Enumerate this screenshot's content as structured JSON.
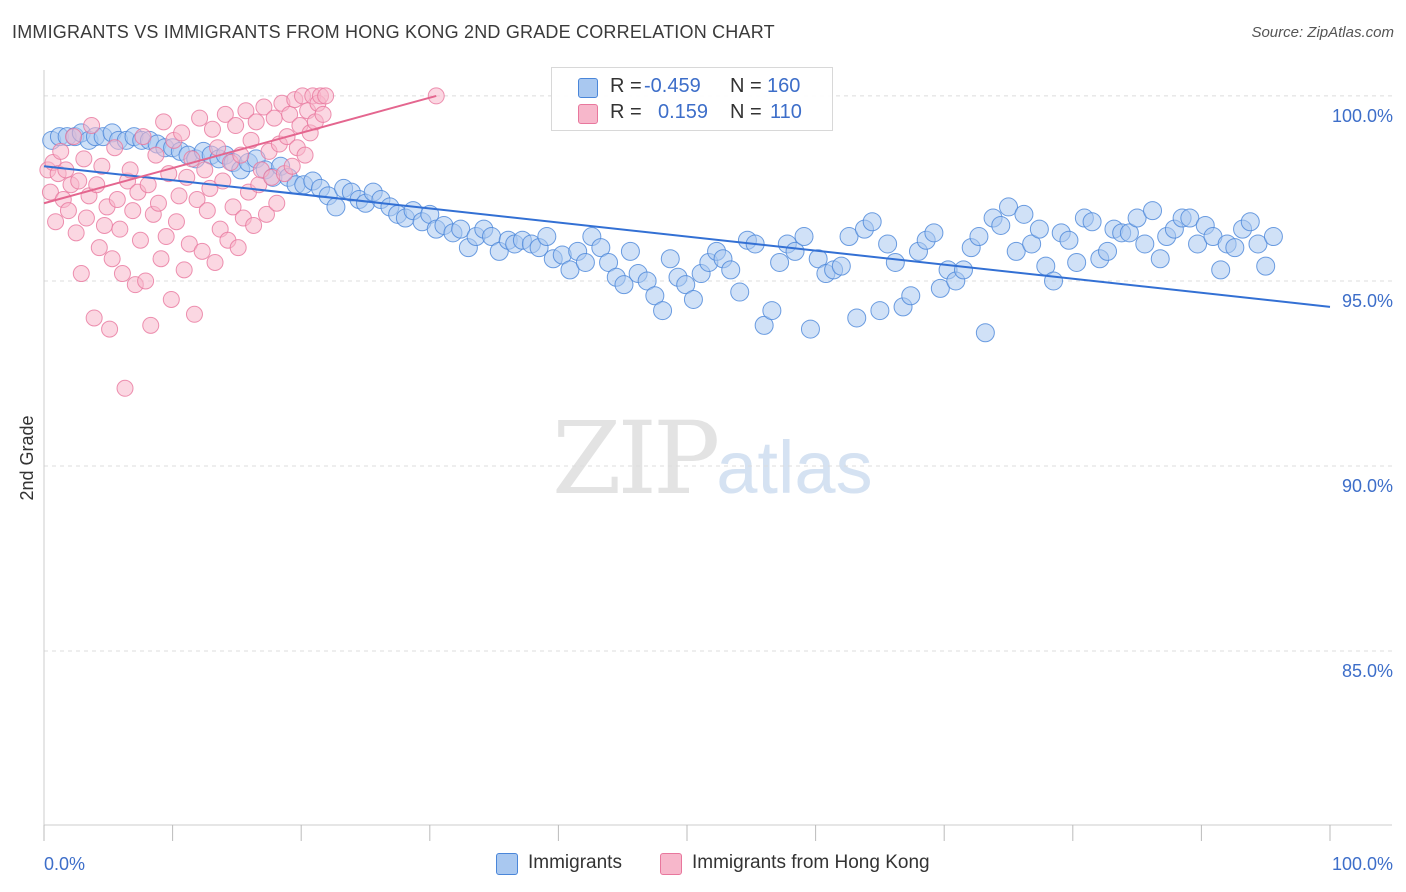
{
  "title": "IMMIGRANTS VS IMMIGRANTS FROM HONG KONG 2ND GRADE CORRELATION CHART",
  "source": "Source: ZipAtlas.com",
  "watermark": {
    "zip": "ZIP",
    "atlas": "atlas"
  },
  "stats": [
    {
      "r_label": "R =",
      "r_value": "-0.459",
      "n_label": "N =",
      "n_value": "160",
      "color": "#a9c8f0"
    },
    {
      "r_label": "R =",
      "r_value": "0.159",
      "n_label": "N =",
      "n_value": "110",
      "color": "#f7b7cb"
    }
  ],
  "legend": [
    {
      "label": "Immigrants",
      "color": "#a9c8f0"
    },
    {
      "label": "Immigrants from Hong Kong",
      "color": "#f7b7cb"
    }
  ],
  "chart_data": {
    "type": "scatter",
    "xlabel": "",
    "ylabel": "2nd Grade",
    "xlim": [
      0,
      100
    ],
    "ylim": [
      80.3,
      100.7
    ],
    "x_tick_labels": [
      "0.0%",
      "100.0%"
    ],
    "y_ticks": [
      {
        "value": 100,
        "label": "100.0%"
      },
      {
        "value": 95,
        "label": "95.0%"
      },
      {
        "value": 90,
        "label": "90.0%"
      },
      {
        "value": 85,
        "label": "85.0%"
      }
    ],
    "series": [
      {
        "name": "Immigrants",
        "color": "#4a86d9",
        "fill": "#a9c8f0",
        "line_color": "#3370d4",
        "trend": {
          "x": [
            0,
            100
          ],
          "y": [
            98.1,
            94.3
          ]
        },
        "points": [
          [
            0.6,
            98.8
          ],
          [
            1.2,
            98.9
          ],
          [
            1.8,
            98.9
          ],
          [
            2.4,
            98.9
          ],
          [
            2.9,
            99.0
          ],
          [
            3.5,
            98.8
          ],
          [
            4.0,
            98.9
          ],
          [
            4.6,
            98.9
          ],
          [
            5.3,
            99.0
          ],
          [
            5.8,
            98.8
          ],
          [
            6.4,
            98.8
          ],
          [
            7.0,
            98.9
          ],
          [
            7.6,
            98.8
          ],
          [
            8.2,
            98.8
          ],
          [
            8.8,
            98.7
          ],
          [
            9.4,
            98.6
          ],
          [
            10.0,
            98.6
          ],
          [
            10.6,
            98.5
          ],
          [
            11.2,
            98.4
          ],
          [
            11.8,
            98.3
          ],
          [
            12.4,
            98.5
          ],
          [
            13.0,
            98.4
          ],
          [
            13.6,
            98.3
          ],
          [
            14.1,
            98.4
          ],
          [
            14.7,
            98.2
          ],
          [
            15.3,
            98.0
          ],
          [
            15.9,
            98.2
          ],
          [
            16.5,
            98.3
          ],
          [
            17.2,
            98.0
          ],
          [
            17.8,
            97.8
          ],
          [
            18.4,
            98.1
          ],
          [
            19.0,
            97.8
          ],
          [
            19.6,
            97.6
          ],
          [
            20.2,
            97.6
          ],
          [
            20.9,
            97.7
          ],
          [
            21.5,
            97.5
          ],
          [
            22.1,
            97.3
          ],
          [
            22.7,
            97.0
          ],
          [
            23.3,
            97.5
          ],
          [
            23.9,
            97.4
          ],
          [
            24.5,
            97.2
          ],
          [
            25.0,
            97.1
          ],
          [
            25.6,
            97.4
          ],
          [
            26.2,
            97.2
          ],
          [
            26.9,
            97.0
          ],
          [
            27.5,
            96.8
          ],
          [
            28.1,
            96.7
          ],
          [
            28.7,
            96.9
          ],
          [
            29.4,
            96.6
          ],
          [
            30.0,
            96.8
          ],
          [
            30.5,
            96.4
          ],
          [
            31.1,
            96.5
          ],
          [
            31.8,
            96.3
          ],
          [
            32.4,
            96.4
          ],
          [
            33.0,
            95.9
          ],
          [
            33.6,
            96.2
          ],
          [
            34.2,
            96.4
          ],
          [
            34.8,
            96.2
          ],
          [
            35.4,
            95.8
          ],
          [
            36.1,
            96.1
          ],
          [
            36.6,
            96.0
          ],
          [
            37.2,
            96.1
          ],
          [
            37.9,
            96.0
          ],
          [
            38.5,
            95.9
          ],
          [
            39.1,
            96.2
          ],
          [
            39.6,
            95.6
          ],
          [
            40.3,
            95.7
          ],
          [
            40.9,
            95.3
          ],
          [
            41.5,
            95.8
          ],
          [
            42.1,
            95.5
          ],
          [
            42.6,
            96.2
          ],
          [
            43.3,
            95.9
          ],
          [
            43.9,
            95.5
          ],
          [
            44.5,
            95.1
          ],
          [
            45.1,
            94.9
          ],
          [
            45.6,
            95.8
          ],
          [
            46.2,
            95.2
          ],
          [
            46.9,
            95.0
          ],
          [
            47.5,
            94.6
          ],
          [
            48.1,
            94.2
          ],
          [
            48.7,
            95.6
          ],
          [
            49.3,
            95.1
          ],
          [
            49.9,
            94.9
          ],
          [
            50.5,
            94.5
          ],
          [
            51.1,
            95.2
          ],
          [
            51.7,
            95.5
          ],
          [
            52.3,
            95.8
          ],
          [
            52.8,
            95.6
          ],
          [
            53.4,
            95.3
          ],
          [
            54.1,
            94.7
          ],
          [
            54.7,
            96.1
          ],
          [
            55.3,
            96.0
          ],
          [
            56.0,
            93.8
          ],
          [
            56.6,
            94.2
          ],
          [
            57.2,
            95.5
          ],
          [
            57.8,
            96.0
          ],
          [
            58.4,
            95.8
          ],
          [
            59.1,
            96.2
          ],
          [
            59.6,
            93.7
          ],
          [
            60.2,
            95.6
          ],
          [
            60.8,
            95.2
          ],
          [
            61.4,
            95.3
          ],
          [
            62.0,
            95.4
          ],
          [
            62.6,
            96.2
          ],
          [
            63.2,
            94.0
          ],
          [
            63.8,
            96.4
          ],
          [
            64.4,
            96.6
          ],
          [
            65.0,
            94.2
          ],
          [
            65.6,
            96.0
          ],
          [
            66.2,
            95.5
          ],
          [
            66.8,
            94.3
          ],
          [
            67.4,
            94.6
          ],
          [
            68.0,
            95.8
          ],
          [
            68.6,
            96.1
          ],
          [
            69.2,
            96.3
          ],
          [
            69.7,
            94.8
          ],
          [
            70.3,
            95.3
          ],
          [
            70.9,
            95.0
          ],
          [
            71.5,
            95.3
          ],
          [
            72.1,
            95.9
          ],
          [
            72.7,
            96.2
          ],
          [
            73.2,
            93.6
          ],
          [
            73.8,
            96.7
          ],
          [
            74.4,
            96.5
          ],
          [
            75.0,
            97.0
          ],
          [
            75.6,
            95.8
          ],
          [
            76.2,
            96.8
          ],
          [
            76.8,
            96.0
          ],
          [
            77.4,
            96.4
          ],
          [
            77.9,
            95.4
          ],
          [
            78.5,
            95.0
          ],
          [
            79.1,
            96.3
          ],
          [
            79.7,
            96.1
          ],
          [
            80.3,
            95.5
          ],
          [
            80.9,
            96.7
          ],
          [
            81.5,
            96.6
          ],
          [
            82.1,
            95.6
          ],
          [
            82.7,
            95.8
          ],
          [
            83.2,
            96.4
          ],
          [
            83.8,
            96.3
          ],
          [
            84.4,
            96.3
          ],
          [
            85.0,
            96.7
          ],
          [
            85.6,
            96.0
          ],
          [
            86.2,
            96.9
          ],
          [
            86.8,
            95.6
          ],
          [
            87.3,
            96.2
          ],
          [
            87.9,
            96.4
          ],
          [
            88.5,
            96.7
          ],
          [
            89.1,
            96.7
          ],
          [
            89.7,
            96.0
          ],
          [
            90.3,
            96.5
          ],
          [
            90.9,
            96.2
          ],
          [
            91.5,
            95.3
          ],
          [
            92.0,
            96.0
          ],
          [
            92.6,
            95.9
          ],
          [
            93.2,
            96.4
          ],
          [
            93.8,
            96.6
          ],
          [
            94.4,
            96.0
          ],
          [
            95.0,
            95.4
          ],
          [
            95.6,
            96.2
          ]
        ]
      },
      {
        "name": "Immigrants from Hong Kong",
        "color": "#e8779d",
        "fill": "#f7b7cb",
        "line_color": "#e4668f",
        "trend": {
          "x": [
            0,
            30.5
          ],
          "y": [
            97.1,
            100.0
          ]
        },
        "points": [
          [
            0.3,
            98.0
          ],
          [
            0.5,
            97.4
          ],
          [
            0.7,
            98.2
          ],
          [
            0.9,
            96.6
          ],
          [
            1.1,
            97.9
          ],
          [
            1.3,
            98.5
          ],
          [
            1.5,
            97.2
          ],
          [
            1.7,
            98.0
          ],
          [
            1.9,
            96.9
          ],
          [
            2.1,
            97.6
          ],
          [
            2.3,
            98.9
          ],
          [
            2.5,
            96.3
          ],
          [
            2.7,
            97.7
          ],
          [
            2.9,
            95.2
          ],
          [
            3.1,
            98.3
          ],
          [
            3.3,
            96.7
          ],
          [
            3.5,
            97.3
          ],
          [
            3.7,
            99.2
          ],
          [
            3.9,
            94.0
          ],
          [
            4.1,
            97.6
          ],
          [
            4.3,
            95.9
          ],
          [
            4.5,
            98.1
          ],
          [
            4.7,
            96.5
          ],
          [
            4.9,
            97.0
          ],
          [
            5.1,
            93.7
          ],
          [
            5.3,
            95.6
          ],
          [
            5.5,
            98.6
          ],
          [
            5.7,
            97.2
          ],
          [
            5.9,
            96.4
          ],
          [
            6.1,
            95.2
          ],
          [
            6.3,
            92.1
          ],
          [
            6.5,
            97.7
          ],
          [
            6.7,
            98.0
          ],
          [
            6.9,
            96.9
          ],
          [
            7.1,
            94.9
          ],
          [
            7.3,
            97.4
          ],
          [
            7.5,
            96.1
          ],
          [
            7.7,
            98.9
          ],
          [
            7.9,
            95.0
          ],
          [
            8.1,
            97.6
          ],
          [
            8.3,
            93.8
          ],
          [
            8.5,
            96.8
          ],
          [
            8.7,
            98.4
          ],
          [
            8.9,
            97.1
          ],
          [
            9.1,
            95.6
          ],
          [
            9.3,
            99.3
          ],
          [
            9.5,
            96.2
          ],
          [
            9.7,
            97.9
          ],
          [
            9.9,
            94.5
          ],
          [
            10.1,
            98.8
          ],
          [
            10.3,
            96.6
          ],
          [
            10.5,
            97.3
          ],
          [
            10.7,
            99.0
          ],
          [
            10.9,
            95.3
          ],
          [
            11.1,
            97.8
          ],
          [
            11.3,
            96.0
          ],
          [
            11.5,
            98.3
          ],
          [
            11.7,
            94.1
          ],
          [
            11.9,
            97.2
          ],
          [
            12.1,
            99.4
          ],
          [
            12.3,
            95.8
          ],
          [
            12.5,
            98.0
          ],
          [
            12.7,
            96.9
          ],
          [
            12.9,
            97.5
          ],
          [
            13.1,
            99.1
          ],
          [
            13.3,
            95.5
          ],
          [
            13.5,
            98.6
          ],
          [
            13.7,
            96.4
          ],
          [
            13.9,
            97.7
          ],
          [
            14.1,
            99.5
          ],
          [
            14.3,
            96.1
          ],
          [
            14.5,
            98.2
          ],
          [
            14.7,
            97.0
          ],
          [
            14.9,
            99.2
          ],
          [
            15.1,
            95.9
          ],
          [
            15.3,
            98.4
          ],
          [
            15.5,
            96.7
          ],
          [
            15.7,
            99.6
          ],
          [
            15.9,
            97.4
          ],
          [
            16.1,
            98.8
          ],
          [
            16.3,
            96.5
          ],
          [
            16.5,
            99.3
          ],
          [
            16.7,
            97.6
          ],
          [
            16.9,
            98.0
          ],
          [
            17.1,
            99.7
          ],
          [
            17.3,
            96.8
          ],
          [
            17.5,
            98.5
          ],
          [
            17.7,
            97.8
          ],
          [
            17.9,
            99.4
          ],
          [
            18.1,
            97.1
          ],
          [
            18.3,
            98.7
          ],
          [
            18.5,
            99.8
          ],
          [
            18.7,
            97.9
          ],
          [
            18.9,
            98.9
          ],
          [
            19.1,
            99.5
          ],
          [
            19.3,
            98.1
          ],
          [
            19.5,
            99.9
          ],
          [
            19.7,
            98.6
          ],
          [
            19.9,
            99.2
          ],
          [
            20.1,
            100.0
          ],
          [
            20.3,
            98.4
          ],
          [
            20.5,
            99.6
          ],
          [
            20.7,
            99.0
          ],
          [
            20.9,
            100.0
          ],
          [
            21.1,
            99.3
          ],
          [
            21.3,
            99.8
          ],
          [
            21.5,
            100.0
          ],
          [
            21.7,
            99.5
          ],
          [
            21.9,
            100.0
          ],
          [
            30.5,
            100.0
          ]
        ]
      }
    ]
  }
}
